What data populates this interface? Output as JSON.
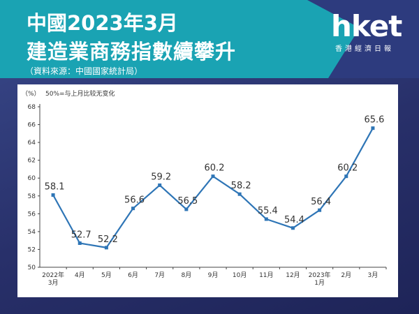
{
  "header": {
    "title_line1": "中國2023年3月",
    "title_line2": "建造業商務指數續攀升",
    "source": "（資料來源：中國國家統計局）"
  },
  "logo": {
    "name": "hket",
    "subtitle": "香港經濟日報"
  },
  "chart_data": {
    "type": "line",
    "unit_label": "（%）",
    "annotation": "50%=与上月比较无变化",
    "categories": [
      "2022年\n3月",
      "4月",
      "5月",
      "6月",
      "7月",
      "8月",
      "9月",
      "10月",
      "11月",
      "12月",
      "2023年\n1月",
      "2月",
      "3月"
    ],
    "values": [
      58.1,
      52.7,
      52.2,
      56.6,
      59.2,
      56.5,
      60.2,
      58.2,
      55.4,
      54.4,
      56.4,
      60.2,
      65.6
    ],
    "value_labels": [
      "58.1",
      "52.7",
      "52.2",
      "56.6",
      "59.2",
      "56.5",
      "60.2",
      "58.2",
      "55.4",
      "54.4",
      "56.4",
      "60.2",
      "65.6"
    ],
    "yticks": [
      "50",
      "52",
      "54",
      "56",
      "58",
      "60",
      "62",
      "64",
      "66",
      "68"
    ],
    "ylim": [
      50,
      68
    ],
    "grid": false,
    "series_color": "#2e75b6"
  }
}
